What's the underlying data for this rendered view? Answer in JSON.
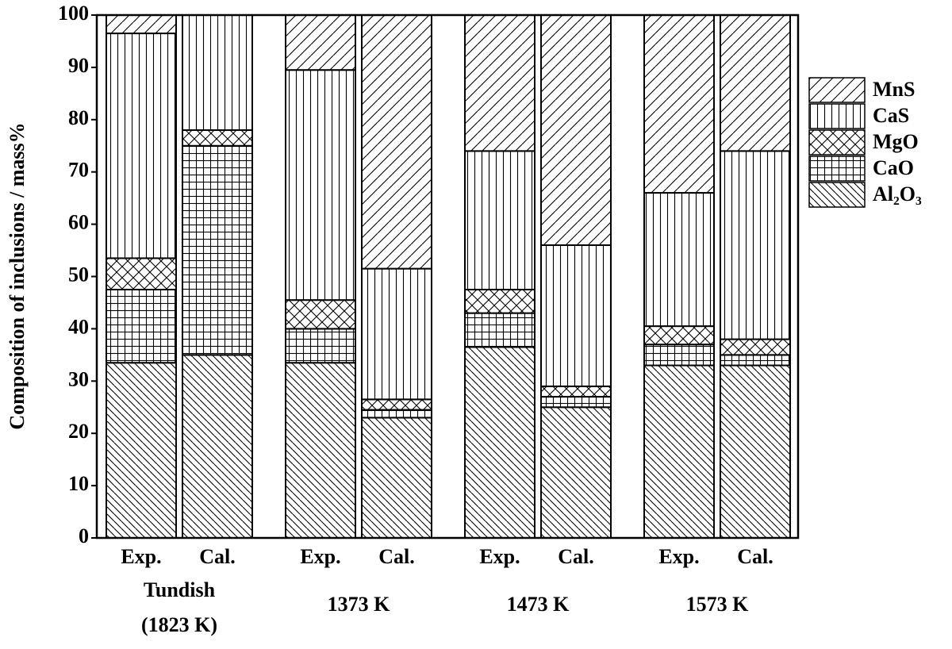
{
  "chart_data": {
    "type": "stacked-bar",
    "y_label": "Composition of inclusions / mass%",
    "categories": [
      "Exp.",
      "Cal.",
      "Exp.",
      "Cal.",
      "Exp.",
      "Cal.",
      "Exp.",
      "Cal."
    ],
    "groups": [
      [
        "Tundish",
        "(1823 K)"
      ],
      [
        "1373 K"
      ],
      [
        "1473 K"
      ],
      [
        "1573 K"
      ]
    ],
    "series": [
      {
        "name": "Al₂O₃",
        "color": "#000000",
        "pattern": "\\",
        "values": [
          33.5,
          35,
          33.5,
          23,
          36.5,
          25,
          33,
          33
        ]
      },
      {
        "name": "CaO",
        "color": "#000000",
        "pattern": "+",
        "values": [
          14,
          40,
          6.5,
          1.5,
          6.5,
          2,
          4,
          2
        ]
      },
      {
        "name": "MgO",
        "color": "#000000",
        "pattern": "x",
        "values": [
          6,
          3,
          5.5,
          2,
          4.5,
          2,
          3.5,
          3
        ]
      },
      {
        "name": "CaS",
        "color": "#000000",
        "pattern": "|",
        "values": [
          43,
          22,
          44,
          25,
          26.5,
          27,
          25.5,
          36
        ]
      },
      {
        "name": "MnS",
        "color": "#000000",
        "pattern": "/",
        "values": [
          3.5,
          0,
          10.5,
          48.5,
          26,
          44,
          34,
          26
        ]
      }
    ],
    "ylim": [
      0,
      100
    ],
    "yticks": [
      0,
      10,
      20,
      30,
      40,
      50,
      60,
      70,
      80,
      90,
      100
    ],
    "grid": false,
    "legend": "right"
  }
}
